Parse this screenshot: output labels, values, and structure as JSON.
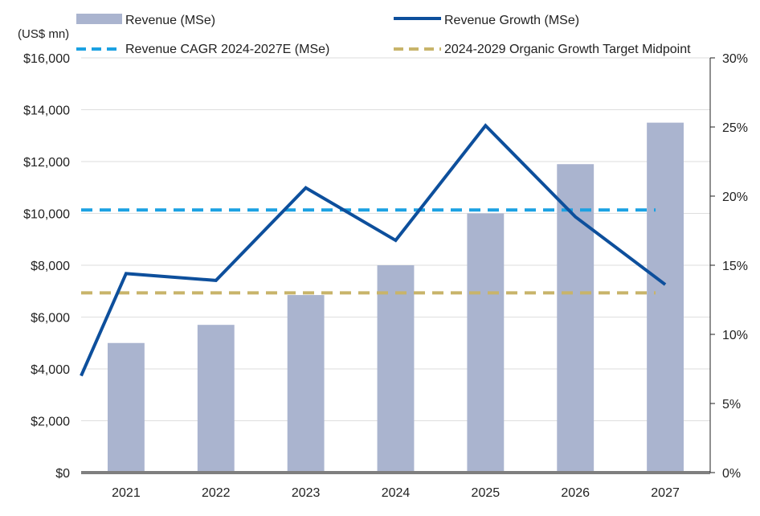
{
  "chart_data": {
    "type": "bar",
    "unit_label": "(US$ mn)",
    "categories": [
      "2021",
      "2022",
      "2023",
      "2024",
      "2025",
      "2026",
      "2027"
    ],
    "series": [
      {
        "name": "Revenue (MSe)",
        "type": "bar",
        "axis": "left",
        "color": "#aab4cf",
        "values": [
          5000,
          5700,
          6850,
          8000,
          10000,
          11900,
          13500
        ]
      },
      {
        "name": "Revenue Growth (MSe)",
        "type": "line",
        "axis": "right",
        "color": "#0d4f9c",
        "values": [
          14.4,
          13.9,
          20.6,
          16.8,
          25.1,
          18.5,
          13.6
        ],
        "start_value": 7.0
      },
      {
        "name": "Revenue CAGR 2024-2027E (MSe)",
        "type": "hline",
        "axis": "right",
        "color": "#1ba1e2",
        "value": 19.0
      },
      {
        "name": "2024-2029 Organic Growth Target Midpoint",
        "type": "hline",
        "axis": "right",
        "color": "#c8b46a",
        "value": 13.0
      }
    ],
    "y_left": {
      "min": 0,
      "max": 16000,
      "ticks": [
        "$0",
        "$2,000",
        "$4,000",
        "$6,000",
        "$8,000",
        "$10,000",
        "$12,000",
        "$14,000",
        "$16,000"
      ]
    },
    "y_right": {
      "min": 0,
      "max": 30,
      "ticks": [
        "0%",
        "5%",
        "10%",
        "15%",
        "20%",
        "25%",
        "30%"
      ]
    },
    "grid": true,
    "legend_position": "top"
  }
}
